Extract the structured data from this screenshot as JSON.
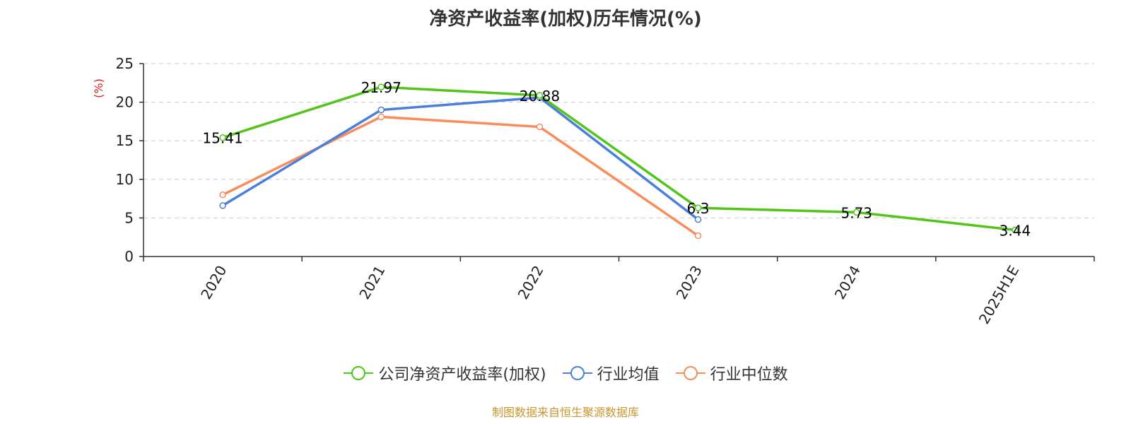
{
  "title": "净资产收益率(加权)历年情况(%)",
  "source_note": "制图数据来自恒生聚源数据库",
  "colors": {
    "company": "#52c41a",
    "industry_avg": "#4a7fdc",
    "industry_median": "#fa8c5a",
    "grid": "#cccccc",
    "axis": "#333333",
    "unit": "#e41a1c",
    "source": "#c8962c"
  },
  "legend": [
    {
      "name": "公司净资产收益率(加权)",
      "series_index": 0
    },
    {
      "name": "行业均值",
      "series_index": 1
    },
    {
      "name": "行业中位数",
      "series_index": 2
    }
  ],
  "chart_data": {
    "type": "line",
    "title": "净资产收益率(加权)历年情况(%)",
    "categories": [
      "2020",
      "2021",
      "2022",
      "2023",
      "2024",
      "2025H1E"
    ],
    "ylabel": "(%)",
    "xlabel": "",
    "ylim": [
      0,
      25
    ],
    "yticks": [
      0,
      5,
      10,
      15,
      20,
      25
    ],
    "grid": true,
    "legend_position": "bottom",
    "series": [
      {
        "name": "公司净资产收益率(加权)",
        "color": "#52c41a",
        "values": [
          15.41,
          21.97,
          20.88,
          6.3,
          5.73,
          3.44
        ],
        "labels": [
          "15.41",
          "21.97",
          "20.88",
          "6.3",
          "5.73",
          "3.44"
        ]
      },
      {
        "name": "行业均值",
        "color": "#4a7fdc",
        "values": [
          6.6,
          19.0,
          20.6,
          4.8,
          null,
          null
        ]
      },
      {
        "name": "行业中位数",
        "color": "#fa8c5a",
        "values": [
          8.0,
          18.1,
          16.8,
          2.7,
          null,
          null
        ]
      }
    ]
  }
}
